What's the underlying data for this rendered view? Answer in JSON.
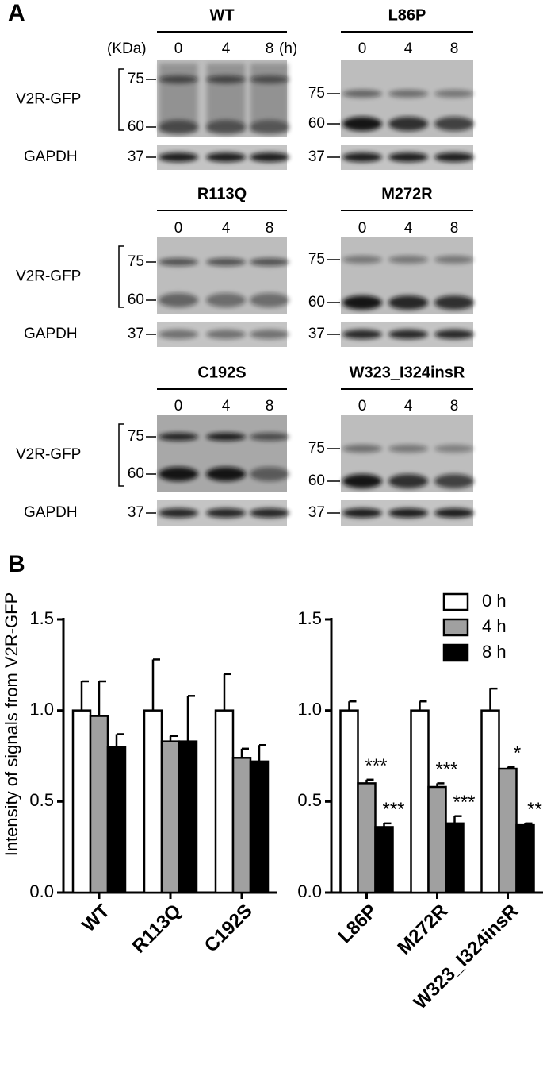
{
  "figure_a_label": "A",
  "figure_b_label": "B",
  "blots": {
    "kda_label": "(KDa)",
    "hour_label": "(h)",
    "panels": [
      {
        "title": "WT",
        "times": [
          0,
          4,
          8
        ],
        "markers": [
          75,
          60,
          37
        ],
        "row_labels": [
          "V2R-GFP",
          "GAPDH"
        ]
      },
      {
        "title": "L86P",
        "times": [
          0,
          4,
          8
        ],
        "markers": [
          75,
          60,
          37
        ]
      },
      {
        "title": "R113Q",
        "times": [
          0,
          4,
          8
        ],
        "markers": [
          75,
          60,
          37
        ],
        "row_labels": [
          "V2R-GFP",
          "GAPDH"
        ]
      },
      {
        "title": "M272R",
        "times": [
          0,
          4,
          8
        ],
        "markers": [
          75,
          60,
          37
        ]
      },
      {
        "title": "C192S",
        "times": [
          0,
          4,
          8
        ],
        "markers": [
          75,
          60,
          37
        ],
        "row_labels": [
          "V2R-GFP",
          "GAPDH"
        ]
      },
      {
        "title": "W323_I324insR",
        "times": [
          0,
          4,
          8
        ],
        "markers": [
          75,
          60,
          37
        ]
      }
    ]
  },
  "chart_data": [
    {
      "type": "bar",
      "y_label": "Intensity of signals from V2R-GFP",
      "categories": [
        "WT",
        "R113Q",
        "C192S"
      ],
      "series": [
        {
          "color": "#ffffff",
          "values": [
            1.0,
            1.0,
            1.0
          ],
          "errors": [
            0.16,
            0.28,
            0.2
          ]
        },
        {
          "color": "#a0a0a0",
          "values": [
            0.97,
            0.83,
            0.74
          ],
          "errors": [
            0.19,
            0.03,
            0.05
          ]
        },
        {
          "color": "#000000",
          "values": [
            0.8,
            0.83,
            0.72
          ],
          "errors": [
            0.07,
            0.25,
            0.09
          ]
        }
      ],
      "ylim": [
        0,
        1.5
      ],
      "yticks": [
        {
          "value": 0,
          "label": "0.0"
        },
        0.5,
        {
          "value": 1,
          "label": "1.0"
        },
        1.5
      ]
    },
    {
      "type": "bar",
      "categories": [
        "L86P",
        "M272R",
        "W323_I324insR"
      ],
      "series": [
        {
          "name": "0 h",
          "color": "#ffffff",
          "values": [
            1.0,
            1.0,
            1.0
          ],
          "errors": [
            0.05,
            0.05,
            0.12
          ]
        },
        {
          "name": "4 h",
          "color": "#a0a0a0",
          "values": [
            0.6,
            0.58,
            0.68
          ],
          "errors": [
            0.02,
            0.02,
            0.01
          ],
          "annotations": [
            "***",
            "***",
            "*"
          ]
        },
        {
          "name": "8 h",
          "color": "#000000",
          "values": [
            0.36,
            0.38,
            0.37
          ],
          "errors": [
            0.02,
            0.04,
            0.01
          ],
          "annotations": [
            "***",
            "***",
            "**"
          ]
        }
      ],
      "ylim": [
        0,
        1.5
      ],
      "yticks": [
        {
          "value": 0,
          "label": "0.0"
        },
        0.5,
        {
          "value": 1,
          "label": "1.0"
        },
        1.5
      ],
      "legend": "upper right"
    }
  ]
}
